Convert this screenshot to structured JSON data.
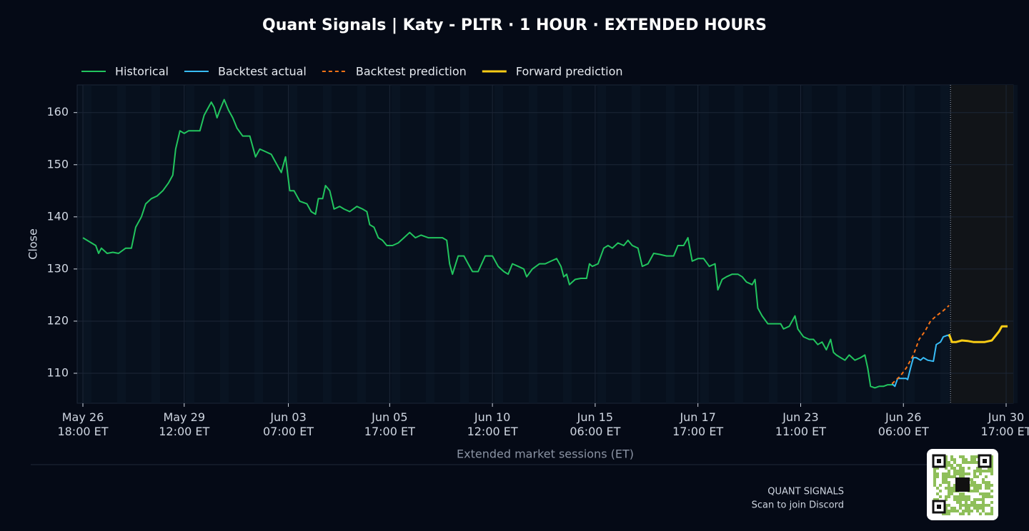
{
  "chart_data": {
    "type": "line",
    "title": "Quant Signals | Katy - PLTR  ·  1 HOUR  ·  EXTENDED HOURS",
    "ylabel": "Close",
    "xlabel": "Extended market sessions (ET)",
    "grid": true,
    "legend": "top-left",
    "xlim": [
      -2,
      326
    ],
    "ylim": [
      104.25,
      165.3
    ],
    "yticks": [
      110,
      120,
      130,
      140,
      150,
      160
    ],
    "xticks": [
      {
        "value": 0,
        "label": "May 26\n18:00 ET"
      },
      {
        "value": 35.5,
        "label": "May 29\n12:00 ET"
      },
      {
        "value": 72,
        "label": "Jun 03\n07:00 ET"
      },
      {
        "value": 107.5,
        "label": "Jun 05\n17:00 ET"
      },
      {
        "value": 143.5,
        "label": "Jun 10\n12:00 ET"
      },
      {
        "value": 179.5,
        "label": "Jun 15\n06:00 ET"
      },
      {
        "value": 215.5,
        "label": "Jun 17\n17:00 ET"
      },
      {
        "value": 251.5,
        "label": "Jun 23\n11:00 ET"
      },
      {
        "value": 287.5,
        "label": "Jun 26\n06:00 ET"
      },
      {
        "value": 323.5,
        "label": "Jun 30\n17:00 ET"
      }
    ],
    "forecast_start": 304,
    "series": [
      {
        "name": "Historical",
        "color": "#22c55e",
        "dash": false,
        "x": [
          0,
          3,
          4.5,
          5.5,
          6.5,
          8.5,
          10.5,
          12.5,
          15,
          17,
          18.5,
          20.5,
          22,
          24,
          26,
          28,
          30,
          31.5,
          32.5,
          34,
          35.5,
          37,
          39,
          41,
          42.5,
          44,
          45,
          46,
          47,
          48,
          49.5,
          51,
          52.5,
          54,
          56,
          58.5,
          60.5,
          62,
          64,
          66,
          67.5,
          69.5,
          71,
          72.5,
          74,
          76,
          78.5,
          80,
          81.5,
          82.5,
          84,
          85,
          86.5,
          88,
          90,
          91.5,
          93.5,
          96,
          98,
          99.5,
          100.5,
          102,
          103.5,
          105,
          106.5,
          108.5,
          110.5,
          112.5,
          114.5,
          116.5,
          118.5,
          121,
          123.5,
          126,
          127.5,
          128.5,
          129.5,
          131.5,
          133.5,
          135,
          136.5,
          138.5,
          141,
          143.5,
          145.5,
          147.5,
          149,
          150.5,
          152.5,
          154.5,
          155.5,
          157.5,
          160,
          162,
          164,
          166,
          167.5,
          168.5,
          169.5,
          170.5,
          172.5,
          174.5,
          176.5,
          177.5,
          178.5,
          180.5,
          182.5,
          184,
          185.5,
          187.5,
          189.5,
          191,
          192.5,
          194.5,
          196,
          198,
          200,
          202,
          204.5,
          207,
          208.5,
          210.5,
          212,
          213.5,
          215.5,
          217.5,
          219.5,
          221.5,
          222.5,
          224,
          225.5,
          227.5,
          229.5,
          231,
          232.5,
          234.5,
          235.5,
          236.5,
          238,
          240,
          242,
          244.5,
          245.5,
          247.5,
          249.5,
          250.5,
          252.5,
          254.5,
          256,
          257.5,
          259,
          260.5,
          262,
          263,
          264,
          265.5,
          267,
          268.5,
          270.5,
          272.5,
          274,
          275,
          276,
          277.5,
          279,
          280.5,
          282,
          284
        ],
        "values": [
          136,
          135,
          134.5,
          133,
          134,
          133,
          133.2,
          133,
          134,
          134,
          138,
          140,
          142.5,
          143.5,
          144,
          145,
          146.5,
          148,
          153,
          156.5,
          156,
          156.5,
          156.5,
          156.5,
          159.5,
          161,
          162,
          161,
          159,
          160.5,
          162.5,
          160.5,
          159,
          157,
          155.5,
          155.5,
          151.5,
          153,
          152.5,
          152,
          150.5,
          148.5,
          151.5,
          145,
          145,
          143,
          142.5,
          141,
          140.5,
          143.5,
          143.5,
          146,
          145,
          141.5,
          142,
          141.5,
          141,
          142,
          141.5,
          141,
          138.5,
          138,
          136,
          135.5,
          134.5,
          134.5,
          135,
          136,
          137,
          136,
          136.5,
          136,
          136,
          136,
          135.5,
          131,
          129,
          132.5,
          132.5,
          131,
          129.5,
          129.5,
          132.5,
          132.5,
          130.5,
          129.5,
          129,
          131,
          130.5,
          130,
          128.5,
          130,
          131,
          131,
          131.5,
          132,
          130.5,
          128.5,
          129,
          127,
          128,
          128.2,
          128.2,
          131,
          130.5,
          131,
          134,
          134.5,
          134,
          135,
          134.5,
          135.5,
          134.5,
          134,
          130.5,
          131,
          133,
          132.8,
          132.5,
          132.5,
          134.5,
          134.5,
          136,
          131.5,
          132,
          132,
          130.5,
          131,
          126,
          128,
          128.5,
          129,
          129,
          128.5,
          127.5,
          127,
          128,
          122.5,
          121,
          119.5,
          119.5,
          119.5,
          118.5,
          119,
          121,
          118.5,
          117,
          116.5,
          116.5,
          115.5,
          116,
          114.5,
          116.5,
          114,
          113.5,
          113,
          112.5,
          113.5,
          112.5,
          113,
          113.5,
          111,
          107.5,
          107.2,
          107.5,
          107.5,
          107.8,
          107.8
        ]
      },
      {
        "name": "Backtest actual",
        "color": "#38bdf8",
        "dash": false,
        "x": [
          283.5,
          284.5,
          285.5,
          287,
          288.5,
          289,
          290,
          291,
          292,
          293.5,
          294.5,
          296,
          298,
          299,
          300.5,
          301.5,
          303,
          304
        ],
        "values": [
          108,
          107.5,
          109,
          109,
          109,
          108.8,
          111,
          113,
          113,
          112.5,
          113,
          112.5,
          112.3,
          115.5,
          116,
          117,
          117.3,
          117
        ]
      },
      {
        "name": "Backtest prediction",
        "color": "#f97316",
        "dash": true,
        "x": [
          283.5,
          286.5,
          288.5,
          291,
          293,
          295,
          297,
          299,
          301.5,
          303.5
        ],
        "values": [
          108,
          109.5,
          111,
          113.5,
          116.5,
          118,
          120,
          121,
          122,
          123
        ]
      },
      {
        "name": "Forward prediction",
        "color": "#facc15",
        "dash": false,
        "x": [
          303.5,
          304.5,
          306,
          308,
          310,
          312,
          314,
          316,
          318.5,
          319.5,
          321,
          322,
          324
        ],
        "values": [
          117.5,
          116,
          116,
          116.3,
          116.2,
          116,
          116,
          116,
          116.3,
          117,
          118,
          119,
          119
        ]
      }
    ]
  },
  "footer": {
    "brand": "QUANT SIGNALS",
    "cta": "Scan to join Discord"
  }
}
